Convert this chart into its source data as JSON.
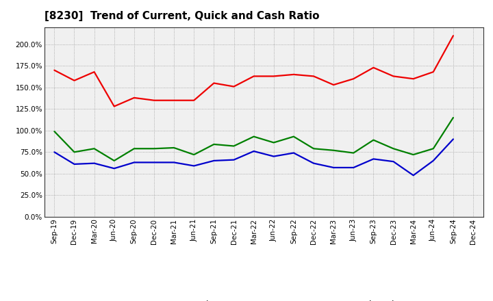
{
  "title": "[8230]  Trend of Current, Quick and Cash Ratio",
  "labels": [
    "Sep-19",
    "Dec-19",
    "Mar-20",
    "Jun-20",
    "Sep-20",
    "Dec-20",
    "Mar-21",
    "Jun-21",
    "Sep-21",
    "Dec-21",
    "Mar-22",
    "Jun-22",
    "Sep-22",
    "Dec-22",
    "Mar-23",
    "Jun-23",
    "Sep-23",
    "Dec-23",
    "Mar-24",
    "Jun-24",
    "Sep-24",
    "Dec-24"
  ],
  "current_ratio": [
    1.7,
    1.58,
    1.68,
    1.28,
    1.38,
    1.35,
    1.35,
    1.35,
    1.55,
    1.51,
    1.63,
    1.63,
    1.65,
    1.63,
    1.53,
    1.6,
    1.73,
    1.63,
    1.6,
    1.68,
    2.1,
    null
  ],
  "quick_ratio": [
    0.99,
    0.75,
    0.79,
    0.65,
    0.79,
    0.79,
    0.8,
    0.72,
    0.84,
    0.82,
    0.93,
    0.86,
    0.93,
    0.79,
    0.77,
    0.74,
    0.89,
    0.79,
    0.72,
    0.79,
    1.15,
    null
  ],
  "cash_ratio": [
    0.75,
    0.61,
    0.62,
    0.56,
    0.63,
    0.63,
    0.63,
    0.59,
    0.65,
    0.66,
    0.76,
    0.7,
    0.74,
    0.62,
    0.57,
    0.57,
    0.67,
    0.64,
    0.48,
    0.65,
    0.9,
    null
  ],
  "current_color": "#EE0000",
  "quick_color": "#008000",
  "cash_color": "#0000CC",
  "ylim": [
    0.0,
    2.2
  ],
  "yticks": [
    0.0,
    0.25,
    0.5,
    0.75,
    1.0,
    1.25,
    1.5,
    1.75,
    2.0
  ],
  "bg_color": "#FFFFFF",
  "plot_bg_color": "#F0F0F0",
  "grid_color": "#999999",
  "legend_labels": [
    "Current Ratio",
    "Quick Ratio",
    "Cash Ratio"
  ],
  "line_width": 1.6,
  "title_fontsize": 11,
  "tick_fontsize": 7.5,
  "legend_fontsize": 9
}
